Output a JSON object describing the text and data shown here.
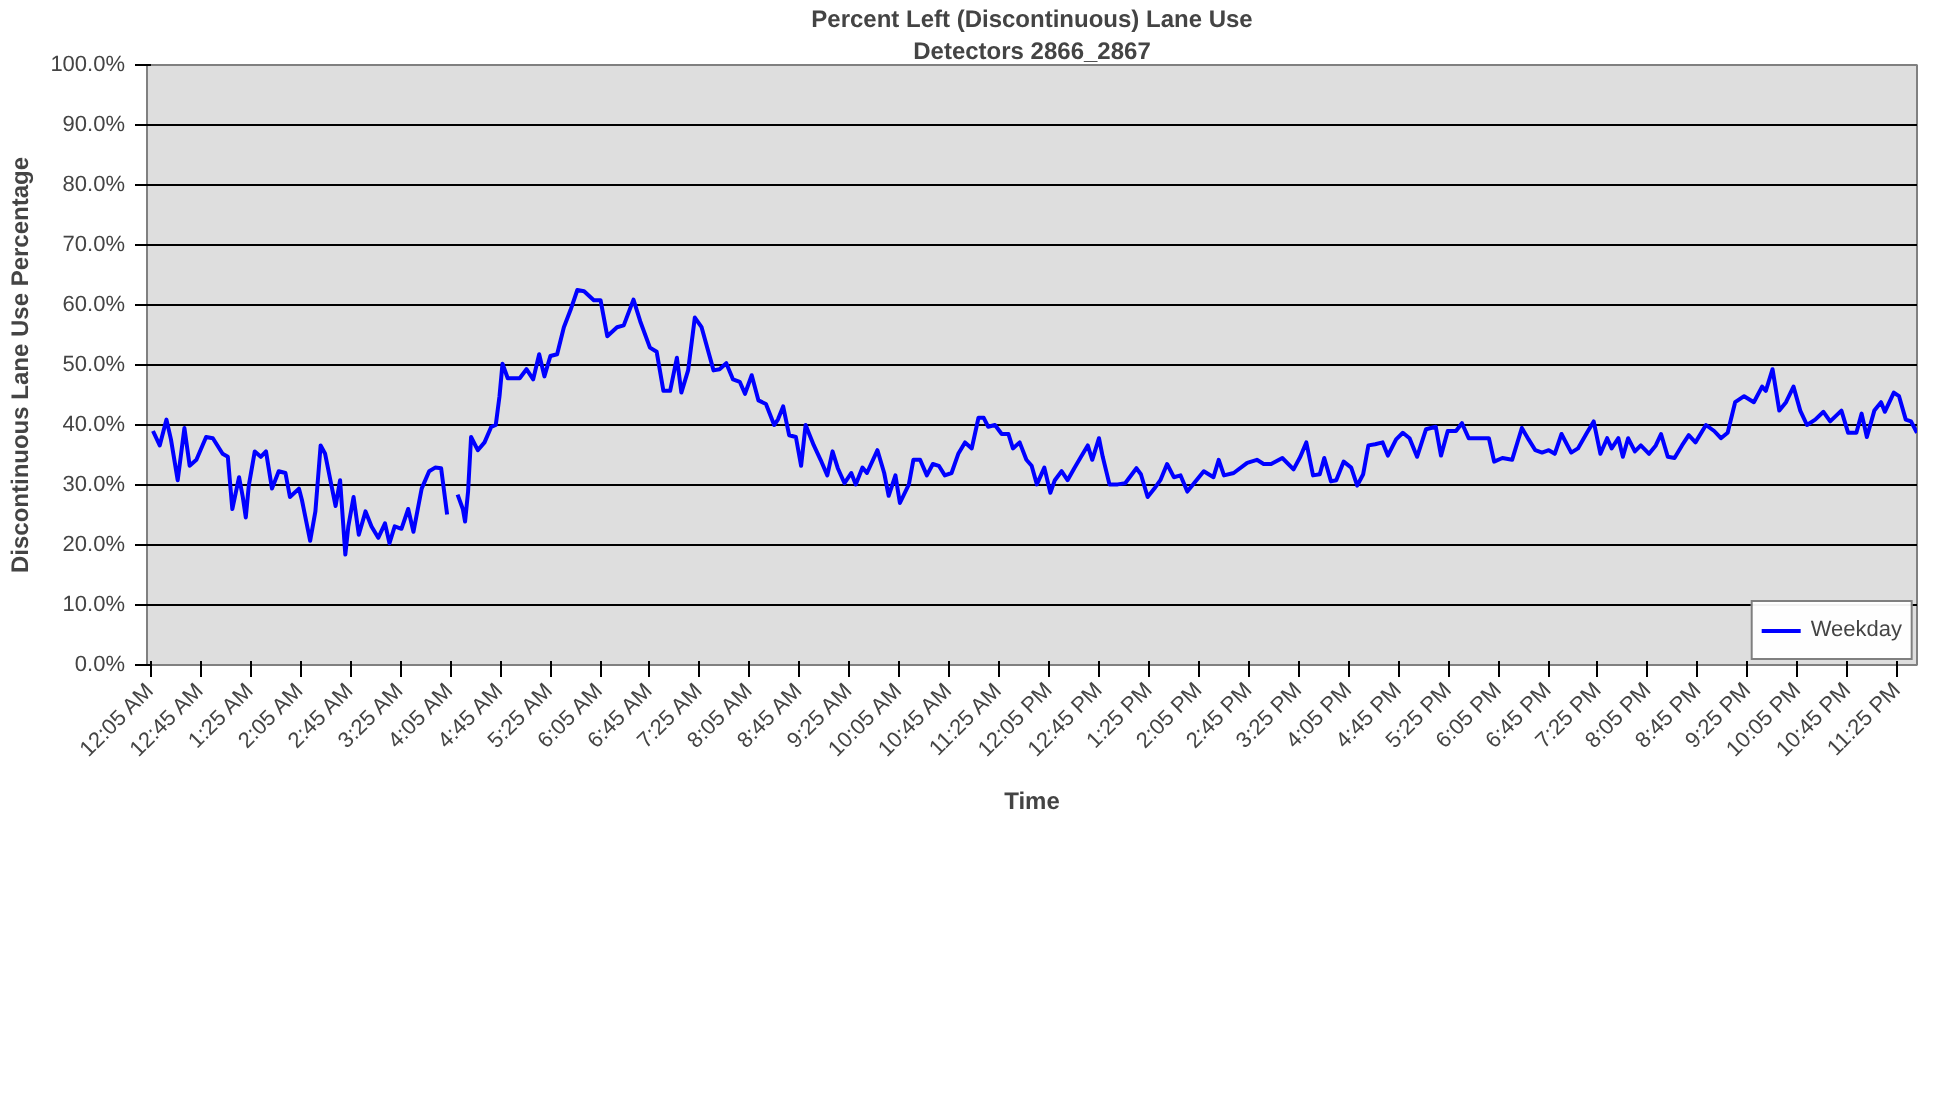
{
  "chart_data": {
    "type": "line",
    "title": "Percent Left (Discontinuous) Lane Use",
    "subtitle": "Detectors 2866_2867",
    "xlabel": "Time",
    "ylabel": "Discontinuous Lane Use Percentage",
    "xlim": [
      0.03,
      23.68
    ],
    "ylim": [
      0,
      100
    ],
    "xticks": [
      {
        "value": 0.0833,
        "label": "12:05 AM"
      },
      {
        "value": 0.75,
        "label": "12:45 AM"
      },
      {
        "value": 1.4167,
        "label": "1:25 AM"
      },
      {
        "value": 2.0833,
        "label": "2:05 AM"
      },
      {
        "value": 2.75,
        "label": "2:45 AM"
      },
      {
        "value": 3.4167,
        "label": "3:25 AM"
      },
      {
        "value": 4.0833,
        "label": "4:05 AM"
      },
      {
        "value": 4.75,
        "label": "4:45 AM"
      },
      {
        "value": 5.4167,
        "label": "5:25 AM"
      },
      {
        "value": 6.0833,
        "label": "6:05 AM"
      },
      {
        "value": 6.75,
        "label": "6:45 AM"
      },
      {
        "value": 7.4167,
        "label": "7:25 AM"
      },
      {
        "value": 8.0833,
        "label": "8:05 AM"
      },
      {
        "value": 8.75,
        "label": "8:45 AM"
      },
      {
        "value": 9.4167,
        "label": "9:25 AM"
      },
      {
        "value": 10.0833,
        "label": "10:05 AM"
      },
      {
        "value": 10.75,
        "label": "10:45 AM"
      },
      {
        "value": 11.4167,
        "label": "11:25 AM"
      },
      {
        "value": 12.0833,
        "label": "12:05 PM"
      },
      {
        "value": 12.75,
        "label": "12:45 PM"
      },
      {
        "value": 13.4167,
        "label": "1:25 PM"
      },
      {
        "value": 14.0833,
        "label": "2:05 PM"
      },
      {
        "value": 14.75,
        "label": "2:45 PM"
      },
      {
        "value": 15.4167,
        "label": "3:25 PM"
      },
      {
        "value": 16.0833,
        "label": "4:05 PM"
      },
      {
        "value": 16.75,
        "label": "4:45 PM"
      },
      {
        "value": 17.4167,
        "label": "5:25 PM"
      },
      {
        "value": 18.0833,
        "label": "6:05 PM"
      },
      {
        "value": 18.75,
        "label": "6:45 PM"
      },
      {
        "value": 19.4167,
        "label": "7:25 PM"
      },
      {
        "value": 20.0833,
        "label": "8:05 PM"
      },
      {
        "value": 20.75,
        "label": "8:45 PM"
      },
      {
        "value": 21.4167,
        "label": "9:25 PM"
      },
      {
        "value": 22.0833,
        "label": "10:05 PM"
      },
      {
        "value": 22.75,
        "label": "10:45 PM"
      },
      {
        "value": 23.4167,
        "label": "11:25 PM"
      }
    ],
    "yticks": [
      {
        "value": 0,
        "label": "0.0%"
      },
      {
        "value": 10,
        "label": "10.0%"
      },
      {
        "value": 20,
        "label": "20.0%"
      },
      {
        "value": 30,
        "label": "30.0%"
      },
      {
        "value": 40,
        "label": "40.0%"
      },
      {
        "value": 50,
        "label": "50.0%"
      },
      {
        "value": 60,
        "label": "60.0%"
      },
      {
        "value": 70,
        "label": "70.0%"
      },
      {
        "value": 80,
        "label": "80.0%"
      },
      {
        "value": 90,
        "label": "90.0%"
      },
      {
        "value": 100,
        "label": "100.0%"
      }
    ],
    "grid": "y",
    "legend": "bottom right",
    "marker": "none",
    "line_style": "solid",
    "series": [
      {
        "name": "Weekday",
        "color": "#0000ff",
        "x": [
          0.11,
          0.2,
          0.29,
          0.35,
          0.44,
          0.53,
          0.6,
          0.69,
          0.82,
          0.91,
          1.04,
          1.11,
          1.17,
          1.26,
          1.31,
          1.35,
          1.39,
          1.47,
          1.55,
          1.62,
          1.7,
          1.79,
          1.88,
          1.94,
          2.06,
          2.1,
          2.21,
          2.28,
          2.35,
          2.41,
          2.48,
          2.55,
          2.61,
          2.68,
          2.72,
          2.79,
          2.86,
          2.95,
          3.03,
          3.12,
          3.21,
          3.27,
          3.34,
          3.43,
          3.52,
          3.59,
          3.7,
          3.8,
          3.88,
          3.96,
          4.04,
          4.11,
          4.18,
          4.25,
          4.28,
          4.32,
          4.36,
          4.45,
          4.54,
          4.63,
          4.69,
          4.74,
          4.78,
          4.85,
          5.01,
          5.1,
          5.19,
          5.27,
          5.34,
          5.42,
          5.51,
          5.6,
          5.69,
          5.78,
          5.87,
          6.0,
          6.09,
          6.18,
          6.31,
          6.4,
          6.53,
          6.62,
          6.75,
          6.84,
          6.93,
          7.02,
          7.11,
          7.17,
          7.26,
          7.35,
          7.44,
          7.6,
          7.68,
          7.77,
          7.86,
          7.95,
          8.02,
          8.11,
          8.2,
          8.3,
          8.41,
          8.46,
          8.53,
          8.61,
          8.7,
          8.77,
          8.83,
          8.94,
          9.03,
          9.12,
          9.19,
          9.26,
          9.35,
          9.44,
          9.5,
          9.59,
          9.65,
          9.79,
          9.88,
          9.94,
          10.03,
          10.09,
          10.21,
          10.27,
          10.36,
          10.45,
          10.53,
          10.61,
          10.69,
          10.78,
          10.87,
          10.96,
          11.05,
          11.14,
          11.21,
          11.27,
          11.36,
          11.45,
          11.54,
          11.6,
          11.69,
          11.78,
          11.85,
          11.92,
          12.02,
          12.1,
          12.16,
          12.25,
          12.33,
          12.42,
          12.51,
          12.6,
          12.66,
          12.75,
          12.8,
          12.89,
          13.0,
          13.1,
          13.25,
          13.31,
          13.4,
          13.49,
          13.57,
          13.66,
          13.75,
          13.84,
          13.93,
          14.02,
          14.15,
          14.28,
          14.35,
          14.42,
          14.55,
          14.73,
          14.86,
          14.95,
          15.05,
          15.2,
          15.35,
          15.44,
          15.52,
          15.61,
          15.7,
          15.76,
          15.85,
          15.92,
          16.02,
          16.12,
          16.2,
          16.28,
          16.35,
          16.44,
          16.54,
          16.61,
          16.72,
          16.81,
          16.9,
          17.0,
          17.12,
          17.25,
          17.32,
          17.41,
          17.52,
          17.6,
          17.69,
          17.96,
          18.03,
          18.14,
          18.27,
          18.4,
          18.49,
          18.58,
          18.67,
          18.76,
          18.84,
          18.93,
          19.06,
          19.15,
          19.27,
          19.36,
          19.45,
          19.54,
          19.6,
          19.69,
          19.75,
          19.82,
          19.91,
          19.99,
          20.1,
          20.19,
          20.26,
          20.35,
          20.44,
          20.54,
          20.63,
          20.72,
          20.86,
          20.97,
          21.06,
          21.15,
          21.25,
          21.37,
          21.5,
          21.61,
          21.66,
          21.75,
          21.84,
          21.93,
          22.03,
          22.12,
          22.21,
          22.32,
          22.43,
          22.52,
          22.67,
          22.76,
          22.87,
          22.94,
          23.01,
          23.11,
          23.2,
          23.25,
          23.37,
          23.44,
          23.53,
          23.6,
          23.68
        ],
        "values": [
          39.0,
          36.6,
          40.9,
          37.6,
          30.8,
          39.5,
          33.2,
          34.2,
          38.0,
          37.8,
          35.2,
          34.7,
          26.0,
          31.3,
          28.0,
          24.6,
          29.9,
          35.6,
          34.7,
          35.6,
          29.4,
          32.3,
          32.0,
          28.0,
          29.4,
          27.5,
          20.7,
          25.6,
          36.6,
          35.2,
          30.8,
          26.5,
          30.8,
          18.4,
          23.1,
          28.0,
          21.7,
          25.6,
          23.1,
          21.2,
          23.6,
          20.3,
          23.1,
          22.7,
          26.0,
          22.2,
          29.4,
          32.3,
          32.9,
          32.8,
          25.1,
          null,
          28.4,
          26.0,
          23.9,
          28.9,
          38.0,
          35.8,
          37.1,
          39.7,
          40.0,
          44.8,
          50.2,
          47.8,
          47.8,
          49.3,
          47.6,
          51.8,
          48.1,
          51.5,
          51.8,
          56.3,
          59.2,
          62.5,
          62.3,
          60.8,
          60.8,
          54.8,
          56.3,
          56.6,
          60.9,
          57.3,
          52.9,
          52.2,
          45.7,
          45.7,
          51.2,
          45.4,
          49.1,
          57.9,
          56.3,
          49.1,
          49.3,
          50.3,
          47.6,
          47.2,
          45.2,
          48.3,
          44.1,
          43.5,
          40.0,
          40.9,
          43.1,
          38.3,
          38.0,
          33.2,
          40.0,
          36.6,
          34.2,
          31.6,
          35.6,
          32.8,
          30.3,
          32.0,
          30.1,
          32.9,
          32.0,
          35.8,
          32.0,
          28.2,
          31.6,
          27.0,
          30.1,
          34.2,
          34.2,
          31.6,
          33.5,
          33.2,
          31.6,
          32.0,
          35.2,
          37.1,
          36.1,
          41.2,
          41.2,
          39.7,
          40.0,
          38.5,
          38.5,
          36.1,
          37.1,
          34.2,
          33.2,
          30.1,
          32.9,
          28.7,
          30.8,
          32.3,
          30.8,
          32.8,
          34.7,
          36.6,
          34.2,
          37.8,
          34.7,
          30.1,
          30.1,
          30.3,
          32.8,
          31.8,
          28.0,
          29.4,
          30.8,
          33.5,
          31.3,
          31.6,
          28.9,
          30.3,
          32.3,
          31.3,
          34.2,
          31.6,
          32.0,
          33.7,
          34.2,
          33.5,
          33.5,
          34.5,
          32.6,
          34.7,
          37.1,
          31.6,
          31.8,
          34.5,
          30.6,
          30.8,
          33.9,
          32.9,
          29.9,
          31.8,
          36.6,
          36.8,
          37.1,
          34.9,
          37.6,
          38.7,
          37.8,
          34.7,
          39.3,
          39.7,
          34.9,
          39.0,
          39.0,
          40.3,
          37.8,
          37.8,
          33.9,
          34.5,
          34.2,
          39.5,
          37.6,
          35.8,
          35.4,
          35.8,
          35.2,
          38.5,
          35.4,
          36.1,
          38.7,
          40.6,
          35.2,
          37.8,
          36.1,
          37.8,
          34.7,
          37.8,
          35.6,
          36.6,
          35.2,
          36.6,
          38.5,
          34.7,
          34.5,
          36.6,
          38.3,
          37.1,
          40.0,
          39.0,
          37.8,
          38.7,
          43.8,
          44.8,
          43.8,
          46.4,
          45.7,
          49.3,
          42.4,
          43.8,
          46.4,
          42.4,
          40.0,
          40.9,
          42.2,
          40.6,
          42.4,
          38.7,
          38.7,
          41.9,
          38.0,
          42.4,
          43.8,
          42.2,
          45.4,
          44.8,
          40.9,
          40.6,
          38.7
        ]
      }
    ]
  }
}
